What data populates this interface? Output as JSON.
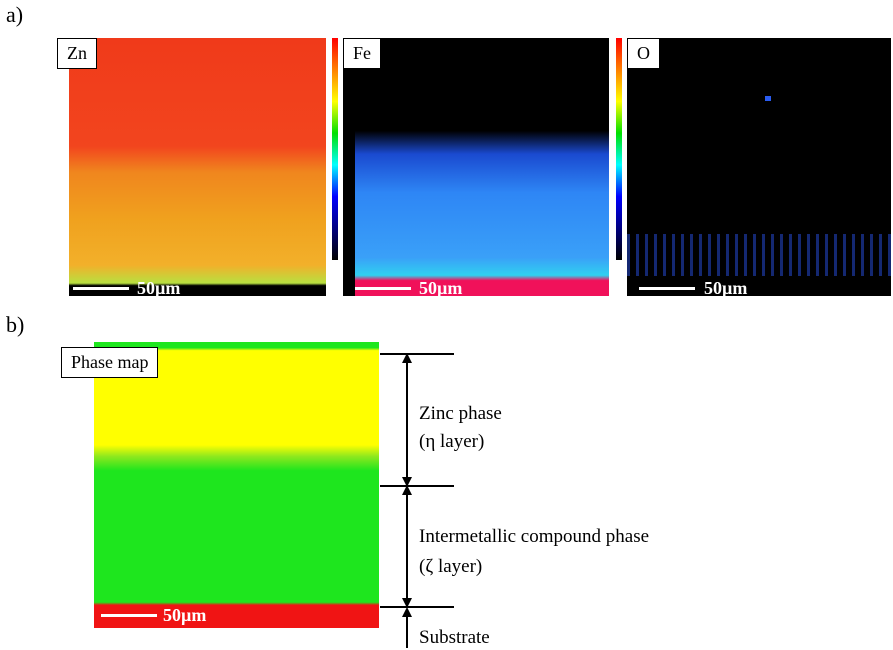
{
  "panel_a": {
    "letter": "a)",
    "maps": [
      {
        "label": "Zn",
        "scale": "50µm"
      },
      {
        "label": "Fe",
        "scale": "50µm"
      },
      {
        "label": "O",
        "scale": "50µm"
      }
    ]
  },
  "panel_b": {
    "letter": "b)",
    "map_label": "Phase map",
    "scale": "50µm",
    "annotations": {
      "zinc_line1": "Zinc phase",
      "zinc_line2": "(η layer)",
      "imc_line1": "Intermetallic compound phase",
      "imc_line2": "(ζ layer)",
      "substrate": "Substrate"
    }
  },
  "colors": {
    "zn_top": "#f2451e",
    "zn_bottom": "#f0a11e",
    "fe_blue": "#2e86f5",
    "fe_substrate": "#f0115a",
    "phase_yellow": "#ffff00",
    "phase_green": "#1ee61e",
    "phase_red": "#f01414"
  }
}
